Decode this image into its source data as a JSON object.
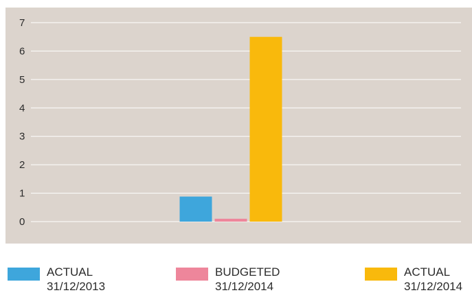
{
  "chart_data": {
    "type": "bar",
    "categories": [
      ""
    ],
    "series": [
      {
        "name": "ACTUAL 31/12/2013",
        "name_lines": [
          "ACTUAL",
          "31/12/2013"
        ],
        "values": [
          0.88
        ],
        "color": "#3ea6dc"
      },
      {
        "name": "BUDGETED 31/12/2014",
        "name_lines": [
          "BUDGETED",
          "31/12/2014"
        ],
        "values": [
          0.1
        ],
        "color": "#ee869b"
      },
      {
        "name": "ACTUAL 31/12/2014",
        "name_lines": [
          "ACTUAL",
          "31/12/2014"
        ],
        "values": [
          6.5
        ],
        "color": "#f9b90c"
      }
    ],
    "title": "",
    "xlabel": "",
    "ylabel": "",
    "ylim": [
      0,
      7
    ],
    "yticks": [
      "0",
      "1",
      "2",
      "3",
      "4",
      "5",
      "6",
      "7"
    ],
    "grid": true,
    "legend_position": "bottom",
    "background_color": "#dcd4cd",
    "grid_color": "#ffffff"
  }
}
